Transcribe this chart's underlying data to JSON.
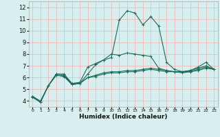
{
  "x": [
    0,
    1,
    2,
    3,
    4,
    5,
    6,
    7,
    8,
    9,
    10,
    11,
    12,
    13,
    14,
    15,
    16,
    17,
    18,
    19,
    20,
    21,
    22,
    23
  ],
  "line1": [
    4.4,
    3.9,
    5.3,
    6.3,
    6.3,
    5.5,
    5.6,
    6.9,
    7.2,
    7.5,
    7.7,
    10.9,
    11.7,
    11.5,
    10.5,
    11.2,
    10.4,
    7.3,
    6.7,
    6.5,
    6.6,
    6.9,
    7.3,
    6.7
  ],
  "line2": [
    4.4,
    3.9,
    5.3,
    6.3,
    6.2,
    5.5,
    5.5,
    6.3,
    7.1,
    7.5,
    8.0,
    7.9,
    8.1,
    8.0,
    7.9,
    7.8,
    6.8,
    6.6,
    6.5,
    6.5,
    6.6,
    6.8,
    7.0,
    6.7
  ],
  "line3": [
    4.4,
    4.0,
    5.3,
    6.2,
    6.1,
    5.4,
    5.5,
    6.0,
    6.2,
    6.4,
    6.5,
    6.5,
    6.6,
    6.6,
    6.7,
    6.8,
    6.7,
    6.6,
    6.5,
    6.5,
    6.5,
    6.7,
    6.9,
    6.7
  ],
  "line4": [
    4.3,
    3.9,
    5.3,
    6.2,
    6.1,
    5.4,
    5.5,
    6.0,
    6.1,
    6.3,
    6.4,
    6.4,
    6.5,
    6.5,
    6.6,
    6.7,
    6.6,
    6.5,
    6.5,
    6.4,
    6.5,
    6.6,
    6.8,
    6.7
  ],
  "line_color": "#1a6b5a",
  "bg_color": "#d8eff0",
  "grid_color": "#f0b8b8",
  "xlabel": "Humidex (Indice chaleur)",
  "ylim": [
    3.5,
    12.5
  ],
  "xlim": [
    -0.5,
    23.5
  ],
  "yticks": [
    4,
    5,
    6,
    7,
    8,
    9,
    10,
    11,
    12
  ],
  "xticks": [
    0,
    1,
    2,
    3,
    4,
    5,
    6,
    7,
    8,
    9,
    10,
    11,
    12,
    13,
    14,
    15,
    16,
    17,
    18,
    19,
    20,
    21,
    22,
    23
  ]
}
